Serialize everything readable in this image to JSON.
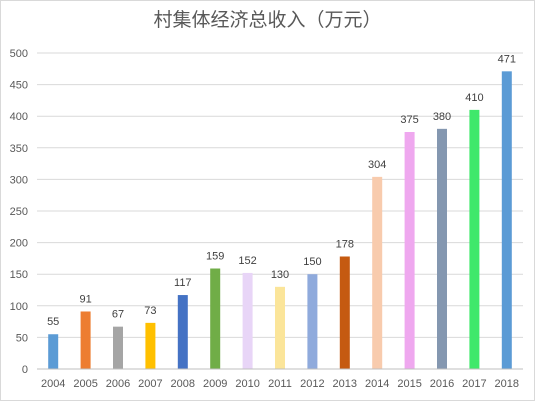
{
  "chart_data": {
    "type": "bar",
    "title": "村集体经济总收入（万元）",
    "xlabel": "",
    "ylabel": "",
    "ylim": [
      0,
      500
    ],
    "yticks": [
      "0",
      "50",
      "100",
      "150",
      "200",
      "250",
      "300",
      "350",
      "400",
      "450",
      "500"
    ],
    "grid": true,
    "legend": "none",
    "categories": [
      "2004",
      "2005",
      "2006",
      "2007",
      "2008",
      "2009",
      "2010",
      "2011",
      "2012",
      "2013",
      "2014",
      "2015",
      "2016",
      "2017",
      "2018"
    ],
    "values": [
      55,
      91,
      67,
      73,
      117,
      159,
      152,
      130,
      150,
      178,
      304,
      375,
      380,
      410,
      471
    ],
    "colors": [
      "#5b9bd5",
      "#ed7d31",
      "#a5a5a5",
      "#ffc000",
      "#4472c4",
      "#70ad47",
      "#e8d5f7",
      "#fbe59a",
      "#8faadc",
      "#c55a11",
      "#f8cbad",
      "#efa8ef",
      "#8497b0",
      "#3fe86b",
      "#5b9bd5"
    ]
  }
}
